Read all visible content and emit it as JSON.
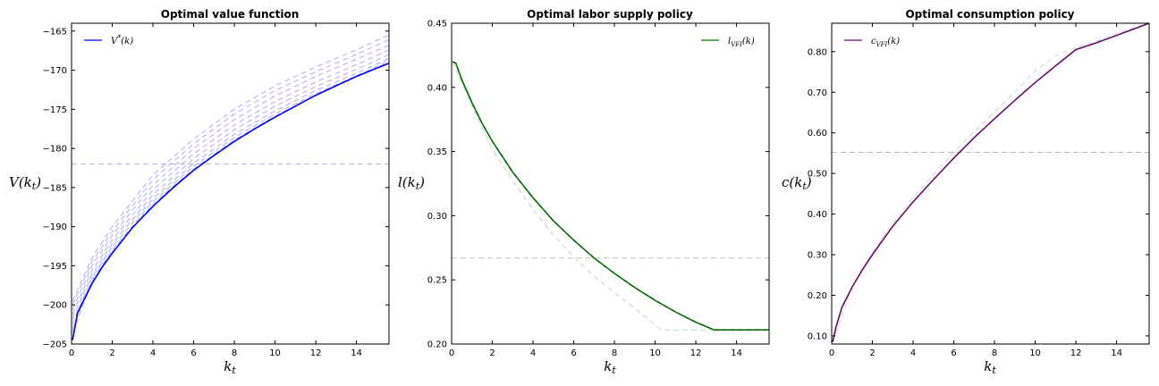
{
  "chart_data": [
    {
      "type": "line",
      "title": "Optimal value function",
      "xlabel": "k_t",
      "ylabel": "V(k_t)",
      "xlim": [
        0,
        15.6
      ],
      "ylim": [
        -205,
        -164
      ],
      "xticks": [
        0,
        2,
        4,
        6,
        8,
        10,
        12,
        14
      ],
      "yticks": [
        -205,
        -200,
        -195,
        -190,
        -185,
        -180,
        -175,
        -170,
        -165
      ],
      "legend_position": "top-left",
      "colors": {
        "main": "#0000ff",
        "iterates": "#9a9aff",
        "initial_guess": "#b0b0d8"
      },
      "series": [
        {
          "name": "V*(k)",
          "style": "solid",
          "x": [
            0.05,
            0.3,
            0.6,
            1,
            1.5,
            2,
            3,
            4,
            5,
            6,
            7,
            8,
            9,
            10,
            11,
            12,
            13,
            14,
            15.6
          ],
          "values": [
            -204.5,
            -201.0,
            -199.4,
            -197.3,
            -195.2,
            -193.4,
            -190.1,
            -187.4,
            -185.0,
            -182.8,
            -180.9,
            -179.1,
            -177.5,
            -176.0,
            -174.6,
            -173.2,
            -172.0,
            -170.8,
            -169.1
          ]
        }
      ],
      "iterates": {
        "style": "dashed",
        "x": [
          0.05,
          1,
          2,
          4,
          6,
          8,
          10,
          12,
          14,
          15.6
        ],
        "curves": [
          [
            -199.5,
            -194.0,
            -190.0,
            -183.4,
            -178.8,
            -175.0,
            -172.0,
            -169.6,
            -167.4,
            -165.5
          ],
          [
            -200.0,
            -194.5,
            -190.6,
            -184.0,
            -179.4,
            -175.6,
            -172.6,
            -170.2,
            -168.0,
            -166.1
          ],
          [
            -200.6,
            -195.0,
            -191.1,
            -184.7,
            -180.0,
            -176.3,
            -173.3,
            -170.8,
            -168.6,
            -166.8
          ],
          [
            -201.2,
            -195.6,
            -191.7,
            -185.3,
            -180.7,
            -177.0,
            -174.0,
            -171.5,
            -169.3,
            -167.4
          ],
          [
            -201.8,
            -196.1,
            -192.2,
            -185.9,
            -181.3,
            -177.6,
            -174.6,
            -172.1,
            -169.9,
            -168.0
          ],
          [
            -202.4,
            -196.5,
            -192.6,
            -186.4,
            -181.9,
            -178.2,
            -175.2,
            -172.6,
            -170.4,
            -168.5
          ],
          [
            -203.0,
            -196.8,
            -193.0,
            -186.8,
            -182.3,
            -178.6,
            -175.6,
            -173.0,
            -170.7,
            -168.8
          ],
          [
            -203.5,
            -197.0,
            -193.2,
            -187.1,
            -182.6,
            -178.9,
            -175.9,
            -173.2,
            -170.8,
            -169.0
          ]
        ]
      },
      "initial_guess": {
        "style": "dashed",
        "y": -182
      }
    },
    {
      "type": "line",
      "title": "Optimal labor supply policy",
      "xlabel": "k_t",
      "ylabel": "l(k_t)",
      "xlim": [
        0,
        15.6
      ],
      "ylim": [
        0.2,
        0.45
      ],
      "xticks": [
        0,
        2,
        4,
        6,
        8,
        10,
        12,
        14
      ],
      "yticks": [
        0.2,
        0.25,
        0.3,
        0.35,
        0.4,
        0.45
      ],
      "legend_position": "top-right",
      "colors": {
        "main": "#008000",
        "overlay": "#1a3a1a",
        "iterates": "#a8d8a8",
        "initial_guess": "#b8c8b8"
      },
      "series": [
        {
          "name": "l_VFI(k)",
          "style": "solid",
          "x": [
            0.05,
            0.2,
            0.5,
            1,
            1.5,
            2,
            3,
            4,
            5,
            6,
            7,
            8,
            9,
            10,
            11,
            12,
            12.9,
            14,
            15.6
          ],
          "values": [
            0.42,
            0.419,
            0.406,
            0.388,
            0.372,
            0.358,
            0.334,
            0.314,
            0.296,
            0.281,
            0.267,
            0.255,
            0.244,
            0.234,
            0.225,
            0.217,
            0.211,
            0.211,
            0.211
          ]
        }
      ],
      "iterates": {
        "style": "dashed",
        "x": [
          0.05,
          1,
          2,
          3,
          4,
          5,
          6,
          7,
          8,
          9,
          10.3,
          12,
          14,
          15.6
        ],
        "curves": [
          [
            0.42,
            0.386,
            0.352,
            0.327,
            0.305,
            0.285,
            0.268,
            0.253,
            0.24,
            0.228,
            0.211,
            0.211,
            0.211,
            0.211
          ]
        ]
      },
      "initial_guess": {
        "style": "dashed",
        "y": 0.267
      }
    },
    {
      "type": "line",
      "title": "Optimal consumption policy",
      "xlabel": "k_t",
      "ylabel": "c(k_t)",
      "xlim": [
        0,
        15.6
      ],
      "ylim": [
        0.08,
        0.87
      ],
      "xticks": [
        0,
        2,
        4,
        6,
        8,
        10,
        12,
        14
      ],
      "yticks": [
        0.1,
        0.2,
        0.3,
        0.4,
        0.5,
        0.6,
        0.7,
        0.8
      ],
      "legend_position": "top-left",
      "colors": {
        "main": "#800080",
        "overlay": "#333333",
        "iterates": "#c8c8d8",
        "initial_guess": "#c0b0d0"
      },
      "series": [
        {
          "name": "c_VFI(k)",
          "style": "solid",
          "x": [
            0.05,
            0.2,
            0.5,
            1,
            1.5,
            2,
            3,
            4,
            5,
            6,
            7,
            8,
            9,
            10,
            11,
            12,
            12.9,
            14,
            15.6
          ],
          "values": [
            0.085,
            0.12,
            0.17,
            0.22,
            0.262,
            0.3,
            0.37,
            0.43,
            0.485,
            0.538,
            0.588,
            0.635,
            0.68,
            0.724,
            0.765,
            0.805,
            0.82,
            0.84,
            0.87
          ]
        }
      ],
      "iterates": {
        "style": "dashed",
        "x": [
          0.05,
          1,
          2,
          3,
          4,
          5,
          6,
          7,
          8,
          9,
          10,
          11,
          12,
          13,
          14,
          15.6
        ],
        "curves": [
          [
            0.085,
            0.222,
            0.305,
            0.377,
            0.44,
            0.497,
            0.552,
            0.603,
            0.652,
            0.7,
            0.753,
            0.79,
            0.81,
            0.825,
            0.845,
            0.87
          ]
        ]
      },
      "initial_guess": {
        "style": "dashed",
        "y": 0.552
      }
    }
  ]
}
